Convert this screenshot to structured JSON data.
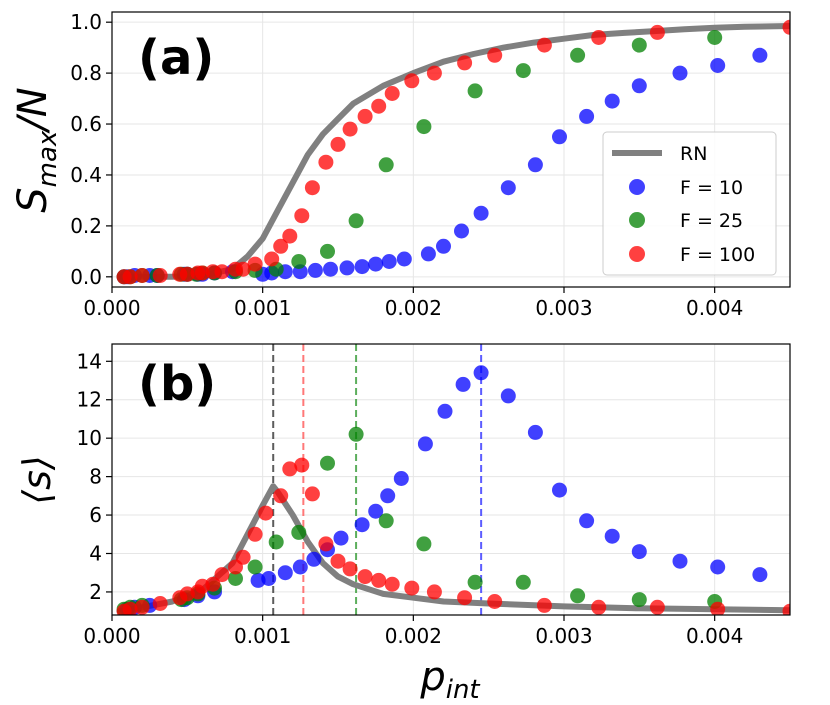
{
  "chart_data": [
    {
      "type": "scatter",
      "panel_label": "(a)",
      "ylabel": "S_max/N",
      "ylabel_main": "S",
      "ylabel_sub": "max",
      "ylabel_tail": "/N",
      "xlim": [
        0.0,
        0.0045
      ],
      "ylim": [
        -0.04,
        1.04
      ],
      "xticks": [
        0.0,
        0.001,
        0.002,
        0.003,
        0.004
      ],
      "xtick_labels": [
        "0.000",
        "0.001",
        "0.002",
        "0.003",
        "0.004"
      ],
      "yticks": [
        0.0,
        0.2,
        0.4,
        0.6,
        0.8,
        1.0
      ],
      "ytick_labels": [
        "0.0",
        "0.2",
        "0.4",
        "0.6",
        "0.8",
        "1.0"
      ],
      "grid": true,
      "legend": {
        "position": "center-right",
        "entries": [
          {
            "label": "RN",
            "kind": "line",
            "color": "#808080"
          },
          {
            "label": "F = 10",
            "kind": "marker",
            "color": "#0000ff"
          },
          {
            "label": "F = 25",
            "kind": "marker",
            "color": "#008000"
          },
          {
            "label": "F = 100",
            "kind": "marker",
            "color": "#ff0000"
          }
        ]
      },
      "series": [
        {
          "name": "RN",
          "kind": "line",
          "color": "#808080",
          "x": [
            5e-05,
            0.0002,
            0.0004,
            0.0006,
            0.0008,
            0.0009,
            0.001,
            0.0011,
            0.0012,
            0.0013,
            0.0014,
            0.0015,
            0.0016,
            0.0018,
            0.002,
            0.0022,
            0.0024,
            0.0026,
            0.0028,
            0.003,
            0.0032,
            0.0034,
            0.0036,
            0.0038,
            0.004,
            0.0042,
            0.0045
          ],
          "y": [
            0.0,
            0.0,
            0.0,
            0.005,
            0.03,
            0.08,
            0.15,
            0.26,
            0.37,
            0.48,
            0.56,
            0.62,
            0.68,
            0.75,
            0.8,
            0.845,
            0.875,
            0.9,
            0.92,
            0.935,
            0.95,
            0.958,
            0.965,
            0.972,
            0.978,
            0.982,
            0.985
          ]
        },
        {
          "name": "F = 10",
          "kind": "marker",
          "color": "#0000ff",
          "x": [
            8e-05,
            0.0001,
            0.00015,
            0.00025,
            0.0003,
            0.00048,
            0.0005,
            0.00057,
            0.0006,
            0.00068,
            0.0008,
            0.001,
            0.00106,
            0.00115,
            0.00125,
            0.00135,
            0.00145,
            0.00156,
            0.00166,
            0.00175,
            0.00184,
            0.00194,
            0.0021,
            0.0022,
            0.00232,
            0.00245,
            0.00263,
            0.00281,
            0.00297,
            0.00315,
            0.00332,
            0.0035,
            0.00377,
            0.00402,
            0.0043
          ],
          "y": [
            0.0,
            0.0,
            0.005,
            0.005,
            0.005,
            0.01,
            0.01,
            0.01,
            0.01,
            0.015,
            0.02,
            0.01,
            0.015,
            0.02,
            0.02,
            0.025,
            0.03,
            0.035,
            0.04,
            0.05,
            0.06,
            0.07,
            0.09,
            0.12,
            0.18,
            0.25,
            0.35,
            0.44,
            0.55,
            0.63,
            0.69,
            0.75,
            0.8,
            0.83,
            0.87
          ]
        },
        {
          "name": "F = 25",
          "kind": "marker",
          "color": "#008000",
          "x": [
            8e-05,
            0.00012,
            0.0002,
            0.0003,
            0.00046,
            0.0005,
            0.00056,
            0.0006,
            0.00068,
            0.00082,
            0.00095,
            0.00109,
            0.00124,
            0.00143,
            0.00162,
            0.00182,
            0.00207,
            0.00241,
            0.00273,
            0.00309,
            0.0035,
            0.004
          ],
          "y": [
            0.0,
            0.0,
            0.005,
            0.005,
            0.01,
            0.01,
            0.01,
            0.015,
            0.015,
            0.02,
            0.025,
            0.03,
            0.06,
            0.1,
            0.22,
            0.44,
            0.59,
            0.73,
            0.81,
            0.87,
            0.91,
            0.94
          ]
        },
        {
          "name": "F = 100",
          "kind": "marker",
          "color": "#ff0000",
          "x": [
            8e-05,
            0.00012,
            0.0002,
            0.00032,
            0.00045,
            0.0005,
            0.00057,
            0.0006,
            0.00067,
            0.00073,
            0.00082,
            0.00087,
            0.00095,
            0.00106,
            0.00112,
            0.00118,
            0.00126,
            0.00133,
            0.00142,
            0.0015,
            0.00158,
            0.00168,
            0.00177,
            0.00186,
            0.00199,
            0.00214,
            0.00234,
            0.00254,
            0.00287,
            0.00323,
            0.00362,
            0.0045
          ],
          "y": [
            0.0,
            0.0,
            0.005,
            0.005,
            0.01,
            0.01,
            0.015,
            0.015,
            0.02,
            0.02,
            0.03,
            0.03,
            0.05,
            0.07,
            0.12,
            0.16,
            0.24,
            0.35,
            0.45,
            0.52,
            0.58,
            0.63,
            0.67,
            0.72,
            0.77,
            0.8,
            0.84,
            0.87,
            0.91,
            0.94,
            0.96,
            0.98
          ]
        }
      ]
    },
    {
      "type": "scatter",
      "panel_label": "(b)",
      "ylabel": "⟨s⟩",
      "xlabel": "p_int",
      "xlabel_main": "p",
      "xlabel_sub": "int",
      "xlim": [
        0.0,
        0.0045
      ],
      "ylim": [
        0.8,
        14.9
      ],
      "xticks": [
        0.0,
        0.001,
        0.002,
        0.003,
        0.004
      ],
      "xtick_labels": [
        "0.000",
        "0.001",
        "0.002",
        "0.003",
        "0.004"
      ],
      "yticks": [
        2,
        4,
        6,
        8,
        10,
        12,
        14
      ],
      "ytick_labels": [
        "2",
        "4",
        "6",
        "8",
        "10",
        "12",
        "14"
      ],
      "grid": true,
      "vlines": [
        {
          "x": 0.00107,
          "color": "#404040",
          "name": "rn-peak-line"
        },
        {
          "x": 0.00127,
          "color": "#ff6060",
          "name": "f100-peak-line"
        },
        {
          "x": 0.00162,
          "color": "#40a040",
          "name": "f25-peak-line"
        },
        {
          "x": 0.00245,
          "color": "#4040ff",
          "name": "f10-peak-line"
        }
      ],
      "series": [
        {
          "name": "RN",
          "kind": "line",
          "color": "#808080",
          "x": [
            5e-05,
            0.0002,
            0.0004,
            0.0006,
            0.0008,
            0.0009,
            0.001,
            0.00107,
            0.0011,
            0.0012,
            0.0013,
            0.0014,
            0.0015,
            0.0016,
            0.0018,
            0.002,
            0.0022,
            0.0025,
            0.003,
            0.0035,
            0.004,
            0.0045
          ],
          "y": [
            1.0,
            1.2,
            1.5,
            2.1,
            3.5,
            5.0,
            6.5,
            7.5,
            7.2,
            6.0,
            4.6,
            3.5,
            2.8,
            2.4,
            1.9,
            1.7,
            1.5,
            1.4,
            1.25,
            1.15,
            1.1,
            1.05
          ]
        },
        {
          "name": "F = 10",
          "kind": "marker",
          "color": "#0000ff",
          "x": [
            0.0001,
            0.00015,
            0.00025,
            0.00048,
            0.00057,
            0.00068,
            0.00097,
            0.00104,
            0.00115,
            0.00125,
            0.00134,
            0.00143,
            0.00152,
            0.00166,
            0.00175,
            0.00183,
            0.00192,
            0.00208,
            0.00221,
            0.00233,
            0.00245,
            0.00263,
            0.00281,
            0.00297,
            0.00315,
            0.00332,
            0.0035,
            0.00377,
            0.00402,
            0.0043
          ],
          "y": [
            1.1,
            1.2,
            1.3,
            1.6,
            1.8,
            2.0,
            2.6,
            2.7,
            3.0,
            3.3,
            3.7,
            4.2,
            4.8,
            5.5,
            6.2,
            7.0,
            7.9,
            9.7,
            11.4,
            12.8,
            13.4,
            12.2,
            10.3,
            7.3,
            5.7,
            4.9,
            4.1,
            3.6,
            3.3,
            2.9
          ]
        },
        {
          "name": "F = 25",
          "kind": "marker",
          "color": "#008000",
          "x": [
            8e-05,
            0.00012,
            0.0002,
            0.00046,
            0.0005,
            0.00057,
            0.00068,
            0.00082,
            0.00095,
            0.00109,
            0.00124,
            0.00143,
            0.00162,
            0.00182,
            0.00207,
            0.00241,
            0.00273,
            0.00309,
            0.0035,
            0.004
          ],
          "y": [
            1.1,
            1.2,
            1.3,
            1.6,
            1.7,
            1.9,
            2.2,
            2.7,
            3.3,
            4.6,
            5.1,
            8.7,
            10.2,
            5.7,
            4.5,
            2.5,
            2.5,
            1.8,
            1.6,
            1.5
          ]
        },
        {
          "name": "F = 100",
          "kind": "marker",
          "color": "#ff0000",
          "x": [
            8e-05,
            0.00012,
            0.0002,
            0.00032,
            0.00045,
            0.0005,
            0.00057,
            0.0006,
            0.00067,
            0.00073,
            0.00082,
            0.00087,
            0.00095,
            0.00102,
            0.00112,
            0.00118,
            0.00126,
            0.00133,
            0.00142,
            0.0015,
            0.00158,
            0.00168,
            0.00177,
            0.00186,
            0.00199,
            0.00214,
            0.00234,
            0.00254,
            0.00287,
            0.00323,
            0.00362,
            0.00402,
            0.0045
          ],
          "y": [
            1.0,
            1.1,
            1.2,
            1.4,
            1.7,
            1.9,
            2.0,
            2.3,
            2.4,
            2.9,
            3.3,
            3.8,
            5.0,
            6.1,
            7.0,
            8.4,
            8.6,
            7.1,
            4.5,
            3.6,
            3.2,
            2.8,
            2.6,
            2.4,
            2.2,
            2.0,
            1.7,
            1.5,
            1.3,
            1.2,
            1.2,
            1.1,
            1.0
          ]
        }
      ]
    }
  ]
}
